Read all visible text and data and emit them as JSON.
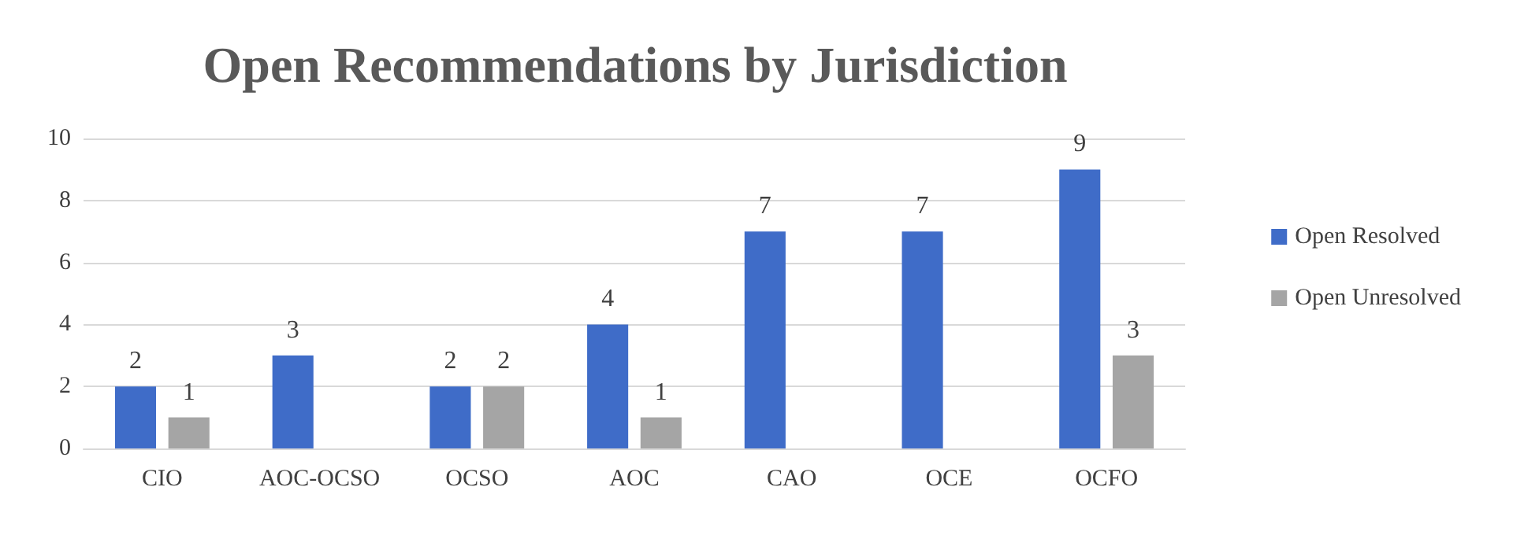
{
  "chart_data": {
    "type": "bar",
    "title": "Open Recommendations by Jurisdiction",
    "categories": [
      "CIO",
      "AOC-OCSO",
      "OCSO",
      "AOC",
      "CAO",
      "OCE",
      "OCFO"
    ],
    "series": [
      {
        "name": "Open Resolved",
        "color": "#3f6cc8",
        "values": [
          2,
          3,
          2,
          4,
          7,
          7,
          9
        ]
      },
      {
        "name": "Open Unresolved",
        "color": "#a5a5a5",
        "values": [
          1,
          null,
          2,
          1,
          null,
          null,
          3
        ]
      }
    ],
    "ylim": [
      0,
      10
    ],
    "yticks": [
      0,
      2,
      4,
      6,
      8,
      10
    ],
    "grid": "y",
    "legend": "right",
    "data_labels": true
  }
}
